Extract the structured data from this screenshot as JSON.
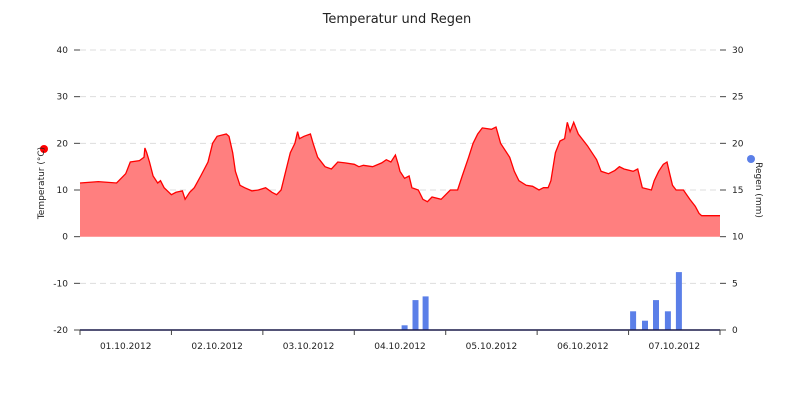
{
  "chart_data": {
    "type": "area",
    "title": "Temperatur und Regen",
    "x_tick_labels": [
      "01.10.2012",
      "02.10.2012",
      "03.10.2012",
      "04.10.2012",
      "05.10.2012",
      "06.10.2012",
      "07.10.2012"
    ],
    "x_range_days": [
      0,
      7
    ],
    "y_left": {
      "label": "Temperatur (°C)",
      "ylim": [
        -20,
        40
      ],
      "ticks": [
        -20,
        -10,
        0,
        10,
        20,
        30,
        40
      ]
    },
    "y_right": {
      "label": "Regen (mm)",
      "ylim": [
        0,
        30
      ],
      "ticks": [
        0,
        5,
        10,
        15,
        20,
        25,
        30
      ]
    },
    "grid": true,
    "series": [
      {
        "name": "Temperatur",
        "type": "area",
        "axis": "left",
        "color": "#ff0000",
        "fill": "#ff7f7f",
        "points": [
          [
            0.0,
            11.5
          ],
          [
            0.2,
            11.8
          ],
          [
            0.4,
            11.5
          ],
          [
            0.5,
            13.5
          ],
          [
            0.55,
            16.0
          ],
          [
            0.65,
            16.3
          ],
          [
            0.7,
            17.0
          ],
          [
            0.71,
            19.0
          ],
          [
            0.73,
            18.0
          ],
          [
            0.76,
            16.0
          ],
          [
            0.8,
            13.0
          ],
          [
            0.85,
            11.5
          ],
          [
            0.88,
            12.0
          ],
          [
            0.92,
            10.5
          ],
          [
            1.0,
            9.0
          ],
          [
            1.05,
            9.5
          ],
          [
            1.12,
            9.8
          ],
          [
            1.15,
            8.0
          ],
          [
            1.2,
            9.5
          ],
          [
            1.25,
            10.5
          ],
          [
            1.32,
            13.0
          ],
          [
            1.4,
            16.0
          ],
          [
            1.45,
            20.0
          ],
          [
            1.5,
            21.5
          ],
          [
            1.6,
            22.0
          ],
          [
            1.63,
            21.5
          ],
          [
            1.67,
            18.0
          ],
          [
            1.7,
            14.0
          ],
          [
            1.75,
            11.0
          ],
          [
            1.8,
            10.5
          ],
          [
            1.88,
            9.8
          ],
          [
            1.95,
            10.0
          ],
          [
            2.03,
            10.5
          ],
          [
            2.1,
            9.5
          ],
          [
            2.15,
            9.0
          ],
          [
            2.2,
            10.0
          ],
          [
            2.25,
            14.0
          ],
          [
            2.3,
            18.0
          ],
          [
            2.35,
            20.0
          ],
          [
            2.38,
            22.5
          ],
          [
            2.4,
            21.0
          ],
          [
            2.45,
            21.5
          ],
          [
            2.52,
            22.0
          ],
          [
            2.55,
            20.0
          ],
          [
            2.6,
            17.0
          ],
          [
            2.68,
            15.0
          ],
          [
            2.75,
            14.5
          ],
          [
            2.82,
            16.0
          ],
          [
            2.9,
            15.8
          ],
          [
            3.0,
            15.5
          ],
          [
            3.05,
            15.0
          ],
          [
            3.1,
            15.3
          ],
          [
            3.2,
            15.0
          ],
          [
            3.3,
            15.8
          ],
          [
            3.35,
            16.5
          ],
          [
            3.4,
            16.0
          ],
          [
            3.45,
            17.5
          ],
          [
            3.48,
            15.5
          ],
          [
            3.5,
            14.0
          ],
          [
            3.55,
            12.5
          ],
          [
            3.6,
            13.0
          ],
          [
            3.63,
            10.5
          ],
          [
            3.7,
            10.0
          ],
          [
            3.75,
            8.0
          ],
          [
            3.8,
            7.5
          ],
          [
            3.85,
            8.5
          ],
          [
            3.95,
            8.0
          ],
          [
            4.0,
            9.0
          ],
          [
            4.05,
            10.0
          ],
          [
            4.13,
            10.0
          ],
          [
            4.18,
            13.0
          ],
          [
            4.25,
            17.0
          ],
          [
            4.3,
            20.0
          ],
          [
            4.35,
            22.0
          ],
          [
            4.4,
            23.3
          ],
          [
            4.5,
            23.0
          ],
          [
            4.55,
            23.5
          ],
          [
            4.6,
            20.0
          ],
          [
            4.7,
            17.0
          ],
          [
            4.75,
            14.0
          ],
          [
            4.8,
            12.0
          ],
          [
            4.88,
            11.0
          ],
          [
            4.95,
            10.8
          ],
          [
            5.02,
            10.0
          ],
          [
            5.07,
            10.5
          ],
          [
            5.12,
            10.5
          ],
          [
            5.15,
            12.0
          ],
          [
            5.2,
            18.0
          ],
          [
            5.25,
            20.5
          ],
          [
            5.3,
            21.0
          ],
          [
            5.33,
            24.5
          ],
          [
            5.36,
            22.5
          ],
          [
            5.4,
            24.5
          ],
          [
            5.45,
            22.0
          ],
          [
            5.55,
            19.5
          ],
          [
            5.6,
            18.0
          ],
          [
            5.65,
            16.5
          ],
          [
            5.7,
            14.0
          ],
          [
            5.78,
            13.5
          ],
          [
            5.85,
            14.2
          ],
          [
            5.9,
            15.0
          ],
          [
            5.95,
            14.5
          ],
          [
            6.05,
            14.0
          ],
          [
            6.1,
            14.5
          ],
          [
            6.15,
            10.5
          ],
          [
            6.25,
            10.0
          ],
          [
            6.28,
            12.0
          ],
          [
            6.33,
            14.0
          ],
          [
            6.38,
            15.5
          ],
          [
            6.42,
            16.0
          ],
          [
            6.45,
            13.5
          ],
          [
            6.48,
            11.0
          ],
          [
            6.52,
            10.0
          ],
          [
            6.6,
            10.0
          ],
          [
            6.67,
            8.0
          ],
          [
            6.73,
            6.5
          ],
          [
            6.77,
            5.0
          ],
          [
            6.8,
            4.5
          ],
          [
            6.95,
            4.5
          ],
          [
            7.0,
            4.5
          ]
        ]
      },
      {
        "name": "Regen",
        "type": "bar",
        "axis": "right",
        "color": "#5b7fe8",
        "points": [
          [
            3.55,
            0.5
          ],
          [
            3.67,
            3.2
          ],
          [
            3.78,
            3.6
          ],
          [
            6.05,
            2.0
          ],
          [
            6.18,
            1.0
          ],
          [
            6.3,
            3.2
          ],
          [
            6.43,
            2.0
          ],
          [
            6.55,
            6.2
          ]
        ]
      }
    ]
  }
}
